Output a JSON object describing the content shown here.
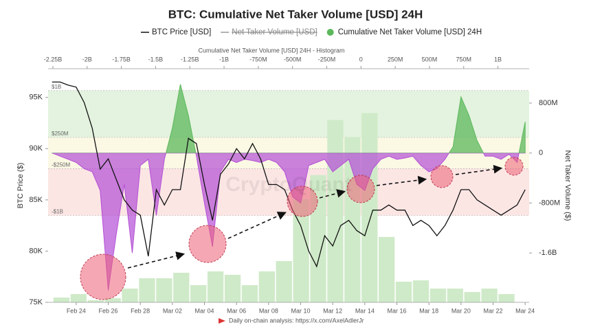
{
  "chart_data": {
    "type": "line",
    "title": "BTC: Cumulative Net Taker Volume [USD] 24H",
    "ylabel": "BTC Price ($)",
    "y2label": "Net Taker Volume ($)",
    "watermark": "CryptoQuant",
    "footer": "Daily on-chain analysis: https://x.com/AxelAdlerJr",
    "categories": [
      null,
      null,
      null,
      "Feb 24",
      null,
      null,
      null,
      "Feb 26",
      null,
      null,
      null,
      "Feb 28",
      null,
      null,
      null,
      "Mar 02",
      null,
      null,
      null,
      "Mar 04",
      null,
      null,
      null,
      "Mar 06",
      null,
      null,
      null,
      "Mar 08",
      null,
      null,
      null,
      "Mar 10",
      null,
      null,
      null,
      "Mar 12",
      null,
      null,
      null,
      "Mar 14",
      null,
      null,
      null,
      "Mar 16",
      null,
      null,
      null,
      "Mar 18",
      null,
      null,
      null,
      "Mar 20",
      null,
      null,
      null,
      "Mar 22",
      null,
      null,
      null,
      "Mar 24"
    ],
    "series": [
      {
        "name": "BTC Price [USD]",
        "color": "#111111",
        "axis": "y",
        "values": [
          96500,
          96500,
          96200,
          96000,
          94500,
          92000,
          88000,
          89000,
          87000,
          85000,
          84000,
          83500,
          79500,
          86000,
          84500,
          86000,
          86000,
          91000,
          90500,
          86500,
          83000,
          87500,
          88500,
          90000,
          89000,
          90500,
          89000,
          86500,
          86500,
          86000,
          84000,
          82500,
          80000,
          78500,
          81500,
          80500,
          82500,
          83000,
          82000,
          81500,
          84000,
          84000,
          84500,
          84000,
          84000,
          82500,
          83000,
          82500,
          81500,
          82500,
          84000,
          86000,
          86000,
          85000,
          84500,
          84000,
          83500,
          84000,
          84500,
          86000
        ]
      },
      {
        "name": "Cumulative Net Taker Volume [USD] 24H",
        "color": "#5cb85c",
        "negative_color": "#b44fd6",
        "axis": "y2",
        "values": [
          0,
          -50000000,
          -100000000,
          -150000000,
          -250000000,
          -300000000,
          -600000000,
          -2200000000,
          -1300000000,
          -500000000,
          -1600000000,
          -200000000,
          -100000000,
          -1000000000,
          -100000000,
          400000000,
          1100000000,
          600000000,
          -50000000,
          -800000000,
          -1500000000,
          -300000000,
          -100000000,
          -150000000,
          -100000000,
          -120000000,
          -150000000,
          -100000000,
          -150000000,
          -300000000,
          -700000000,
          -800000000,
          -200000000,
          -150000000,
          -100000000,
          -300000000,
          -200000000,
          -100000000,
          -500000000,
          -600000000,
          -250000000,
          -100000000,
          -50000000,
          -100000000,
          -80000000,
          -50000000,
          -200000000,
          -300000000,
          -250000000,
          -100000000,
          100000000,
          900000000,
          600000000,
          200000000,
          -50000000,
          -50000000,
          -100000000,
          -20000000,
          -150000000,
          500000000
        ]
      }
    ],
    "hidden_series": [
      {
        "name": "Net Taker Volume [USD]",
        "color": "#999999"
      }
    ],
    "ylim": [
      75000,
      97800
    ],
    "yticks": [
      {
        "value": 75000,
        "label": "75K"
      },
      {
        "value": 80000,
        "label": "80K"
      },
      {
        "value": 85000,
        "label": "85K"
      },
      {
        "value": 90000,
        "label": "90K"
      },
      {
        "value": 95000,
        "label": "95K"
      }
    ],
    "y2lim": [
      -2390000000,
      1350000000
    ],
    "y2ticks": [
      {
        "value": 800000000,
        "label": "800M"
      },
      0,
      {
        "value": -800000000,
        "label": "-800M"
      },
      {
        "value": -1600000000,
        "label": "-1.6B"
      }
    ],
    "bands": [
      {
        "value": 1000000000,
        "label": "$1B"
      },
      {
        "value": 250000000,
        "label": "$250M"
      },
      {
        "value": -250000000,
        "label": "-$250M"
      },
      {
        "value": -1000000000,
        "label": "-$1B"
      }
    ],
    "band_colors": [
      "#e3f3df",
      "#fbf8e4",
      "#fbe6e4"
    ],
    "histogram": {
      "title": "Cumulative Net Taker Volume [USD] 24H - Histogram",
      "color": "#cfeac8",
      "xlim": [
        -2285000000,
        1228000000
      ],
      "xticks": [
        {
          "value": -2250000000,
          "label": "-2.25B"
        },
        {
          "value": -2000000000,
          "label": "-2B"
        },
        {
          "value": -1750000000,
          "label": "-1.75B"
        },
        {
          "value": -1500000000,
          "label": "-1.5B"
        },
        {
          "value": -1250000000,
          "label": "-1.25B"
        },
        {
          "value": -1000000000,
          "label": "-1B"
        },
        {
          "value": -750000000,
          "label": "-750M"
        },
        {
          "value": -500000000,
          "label": "-500M"
        },
        {
          "value": -250000000,
          "label": "-250M"
        },
        0,
        {
          "value": 250000000,
          "label": "250M"
        },
        {
          "value": 500000000,
          "label": "500M"
        },
        {
          "value": 750000000,
          "label": "750M"
        },
        {
          "value": 1000000000,
          "label": "1B"
        }
      ],
      "bins": [
        -2250000000,
        -2125000000,
        -2000000000,
        -1875000000,
        -1750000000,
        -1625000000,
        -1500000000,
        -1375000000,
        -1250000000,
        -1125000000,
        -1000000000,
        -875000000,
        -750000000,
        -625000000,
        -500000000,
        -375000000,
        -250000000,
        -125000000,
        0,
        125000000,
        250000000,
        375000000,
        500000000,
        625000000,
        750000000,
        875000000,
        1000000000,
        1125000000
      ],
      "counts": [
        7,
        12,
        3,
        6,
        20,
        35,
        35,
        43,
        25,
        45,
        40,
        25,
        45,
        60,
        150,
        185,
        265,
        240,
        275,
        95,
        30,
        32,
        20,
        20,
        15,
        20,
        12
      ]
    }
  }
}
